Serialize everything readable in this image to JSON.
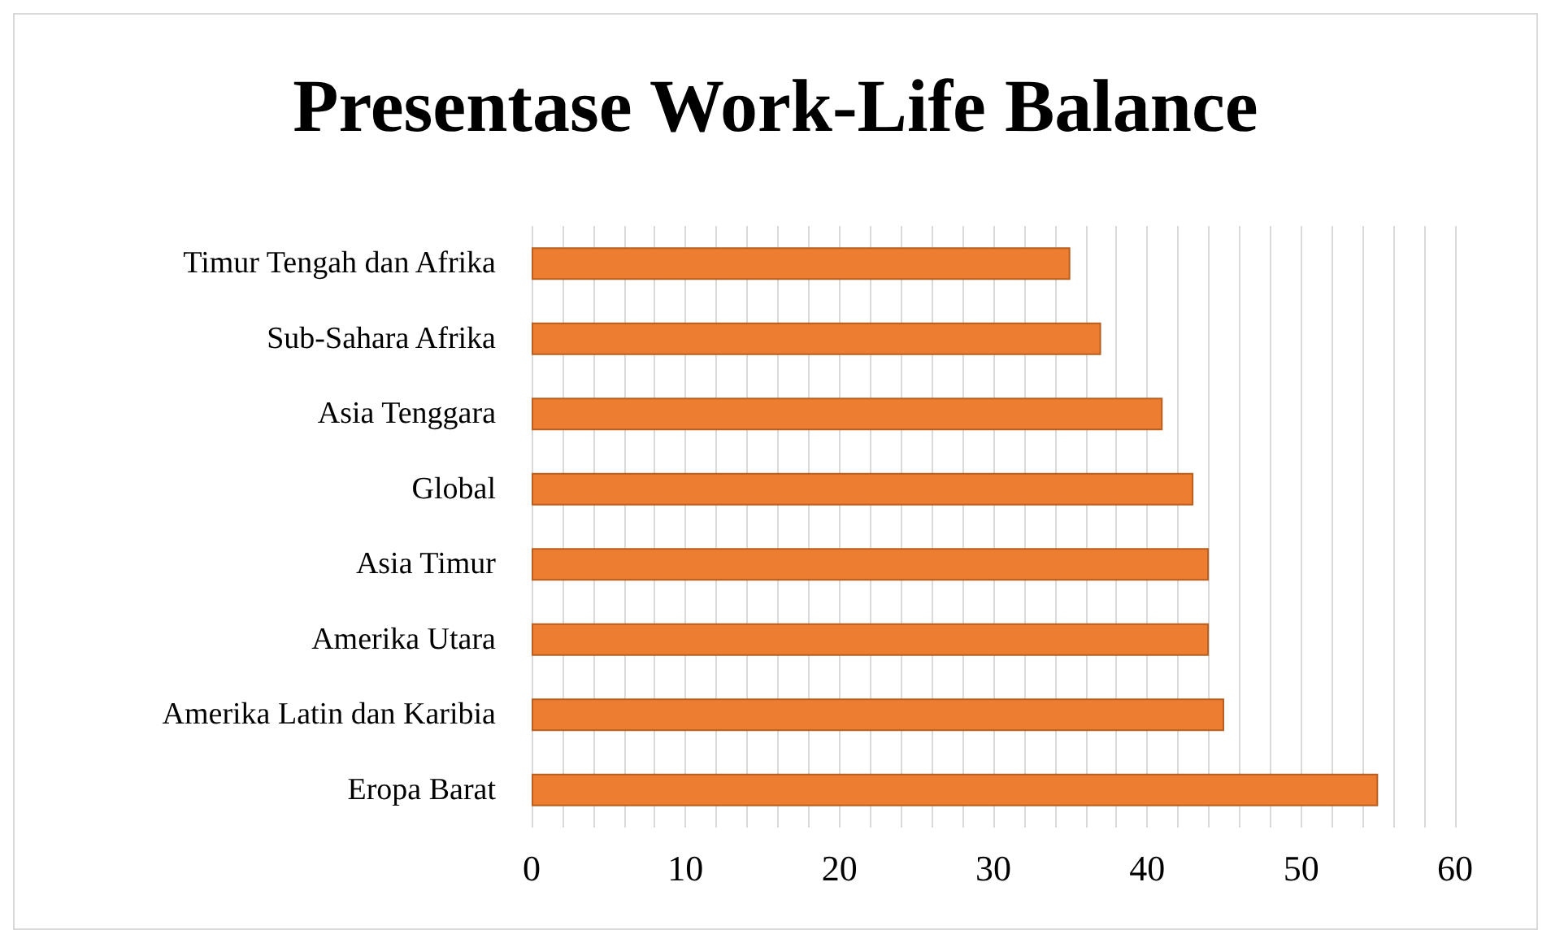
{
  "chart_data": {
    "type": "bar",
    "orientation": "horizontal",
    "title": "Presentase Work-Life Balance",
    "categories": [
      "Timur Tengah dan Afrika",
      "Sub-Sahara Afrika",
      "Asia Tenggara",
      "Global",
      "Asia Timur",
      "Amerika Utara",
      "Amerika Latin dan Karibia",
      "Eropa Barat"
    ],
    "values": [
      35,
      37,
      41,
      43,
      44,
      44,
      45,
      55
    ],
    "color": "#ed7d31",
    "xlim": [
      0,
      60
    ],
    "xticks": [
      0,
      {
        "value": 2,
        "label": null
      },
      {
        "value": 4,
        "label": null
      },
      {
        "value": 6,
        "label": null
      },
      {
        "value": 8,
        "label": null
      },
      10,
      {
        "value": 12,
        "label": null
      },
      {
        "value": 14,
        "label": null
      },
      {
        "value": 16,
        "label": null
      },
      {
        "value": 18,
        "label": null
      },
      20,
      {
        "value": 22,
        "label": null
      },
      {
        "value": 24,
        "label": null
      },
      {
        "value": 26,
        "label": null
      },
      {
        "value": 28,
        "label": null
      },
      30,
      {
        "value": 32,
        "label": null
      },
      {
        "value": 34,
        "label": null
      },
      {
        "value": 36,
        "label": null
      },
      {
        "value": 38,
        "label": null
      },
      40,
      {
        "value": 42,
        "label": null
      },
      {
        "value": 44,
        "label": null
      },
      {
        "value": 46,
        "label": null
      },
      {
        "value": 48,
        "label": null
      },
      50,
      {
        "value": 52,
        "label": null
      },
      {
        "value": 54,
        "label": null
      },
      {
        "value": 56,
        "label": null
      },
      {
        "value": 58,
        "label": null
      },
      60
    ],
    "grid": "x"
  }
}
